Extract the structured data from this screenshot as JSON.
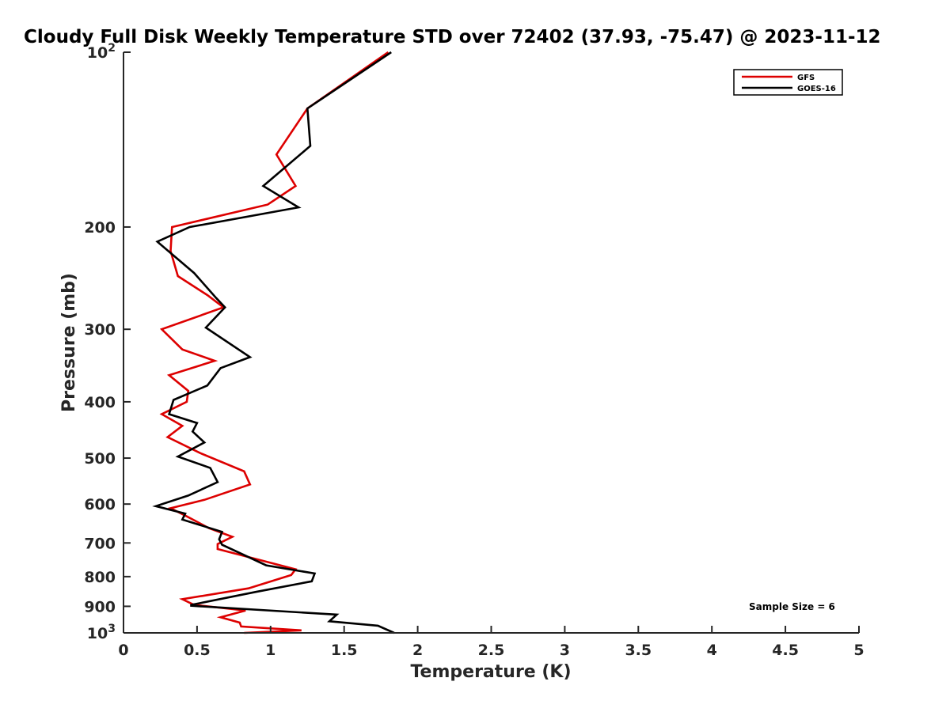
{
  "chart_data": {
    "type": "line",
    "title": "Cloudy Full Disk Weekly Temperature STD over 72402 (37.93, -75.47) @ 2023-11-12",
    "xlabel": "Temperature (K)",
    "ylabel": "Pressure (mb)",
    "xlim": [
      0,
      5
    ],
    "ylim": [
      100,
      1000
    ],
    "yscale": "log",
    "y_reversed": true,
    "grid": false,
    "legend_position": "top-right",
    "x_ticks": [
      {
        "value": 0,
        "label": "0"
      },
      {
        "value": 0.5,
        "label": "0.5"
      },
      {
        "value": 1,
        "label": "1"
      },
      {
        "value": 1.5,
        "label": "1.5"
      },
      {
        "value": 2,
        "label": "2"
      },
      {
        "value": 2.5,
        "label": "2.5"
      },
      {
        "value": 3,
        "label": "3"
      },
      {
        "value": 3.5,
        "label": "3.5"
      },
      {
        "value": 4,
        "label": "4"
      },
      {
        "value": 4.5,
        "label": "4.5"
      },
      {
        "value": 5,
        "label": "5"
      }
    ],
    "y_ticks": [
      {
        "value": 100,
        "base": "10",
        "exp": "2"
      },
      {
        "value": 200,
        "base": "200",
        "exp": ""
      },
      {
        "value": 300,
        "base": "300",
        "exp": ""
      },
      {
        "value": 400,
        "base": "400",
        "exp": ""
      },
      {
        "value": 500,
        "base": "500",
        "exp": ""
      },
      {
        "value": 600,
        "base": "600",
        "exp": ""
      },
      {
        "value": 700,
        "base": "700",
        "exp": ""
      },
      {
        "value": 800,
        "base": "800",
        "exp": ""
      },
      {
        "value": 900,
        "base": "900",
        "exp": ""
      },
      {
        "value": 1000,
        "base": "10",
        "exp": "3"
      }
    ],
    "annotation": "Sample Size = 6",
    "series": [
      {
        "name": "GFS",
        "color": "#dd0000",
        "points": [
          [
            1.8,
            100
          ],
          [
            1.25,
            125
          ],
          [
            1.04,
            150
          ],
          [
            1.17,
            170
          ],
          [
            0.98,
            183
          ],
          [
            0.33,
            200
          ],
          [
            0.32,
            220
          ],
          [
            0.37,
            243
          ],
          [
            0.57,
            262
          ],
          [
            0.68,
            275
          ],
          [
            0.26,
            300
          ],
          [
            0.4,
            325
          ],
          [
            0.62,
            340
          ],
          [
            0.31,
            360
          ],
          [
            0.44,
            383
          ],
          [
            0.43,
            400
          ],
          [
            0.26,
            420
          ],
          [
            0.4,
            440
          ],
          [
            0.3,
            460
          ],
          [
            0.52,
            490
          ],
          [
            0.82,
            527
          ],
          [
            0.86,
            555
          ],
          [
            0.55,
            590
          ],
          [
            0.32,
            610
          ],
          [
            0.43,
            630
          ],
          [
            0.58,
            660
          ],
          [
            0.74,
            683
          ],
          [
            0.64,
            703
          ],
          [
            0.64,
            717
          ],
          [
            1.17,
            777
          ],
          [
            1.14,
            795
          ],
          [
            0.85,
            838
          ],
          [
            0.4,
            875
          ],
          [
            0.48,
            895
          ],
          [
            0.83,
            915
          ],
          [
            0.66,
            940
          ],
          [
            0.79,
            960
          ],
          [
            0.8,
            975
          ],
          [
            1.21,
            990
          ],
          [
            0.82,
            1000
          ]
        ]
      },
      {
        "name": "GOES-16",
        "color": "#000000",
        "points": [
          [
            1.82,
            100
          ],
          [
            1.25,
            125
          ],
          [
            1.27,
            145
          ],
          [
            0.95,
            170
          ],
          [
            1.19,
            185
          ],
          [
            0.45,
            200
          ],
          [
            0.23,
            212
          ],
          [
            0.48,
            240
          ],
          [
            0.63,
            265
          ],
          [
            0.69,
            275
          ],
          [
            0.56,
            298
          ],
          [
            0.86,
            335
          ],
          [
            0.66,
            350
          ],
          [
            0.57,
            375
          ],
          [
            0.34,
            397
          ],
          [
            0.31,
            420
          ],
          [
            0.5,
            435
          ],
          [
            0.47,
            450
          ],
          [
            0.55,
            470
          ],
          [
            0.37,
            497
          ],
          [
            0.59,
            520
          ],
          [
            0.64,
            550
          ],
          [
            0.44,
            580
          ],
          [
            0.22,
            605
          ],
          [
            0.42,
            623
          ],
          [
            0.4,
            638
          ],
          [
            0.67,
            670
          ],
          [
            0.65,
            690
          ],
          [
            0.67,
            705
          ],
          [
            0.97,
            765
          ],
          [
            1.3,
            790
          ],
          [
            1.28,
            815
          ],
          [
            0.9,
            850
          ],
          [
            0.46,
            895
          ],
          [
            0.46,
            898
          ],
          [
            1.45,
            930
          ],
          [
            1.4,
            955
          ],
          [
            1.73,
            972
          ],
          [
            1.84,
            1000
          ]
        ]
      }
    ]
  }
}
